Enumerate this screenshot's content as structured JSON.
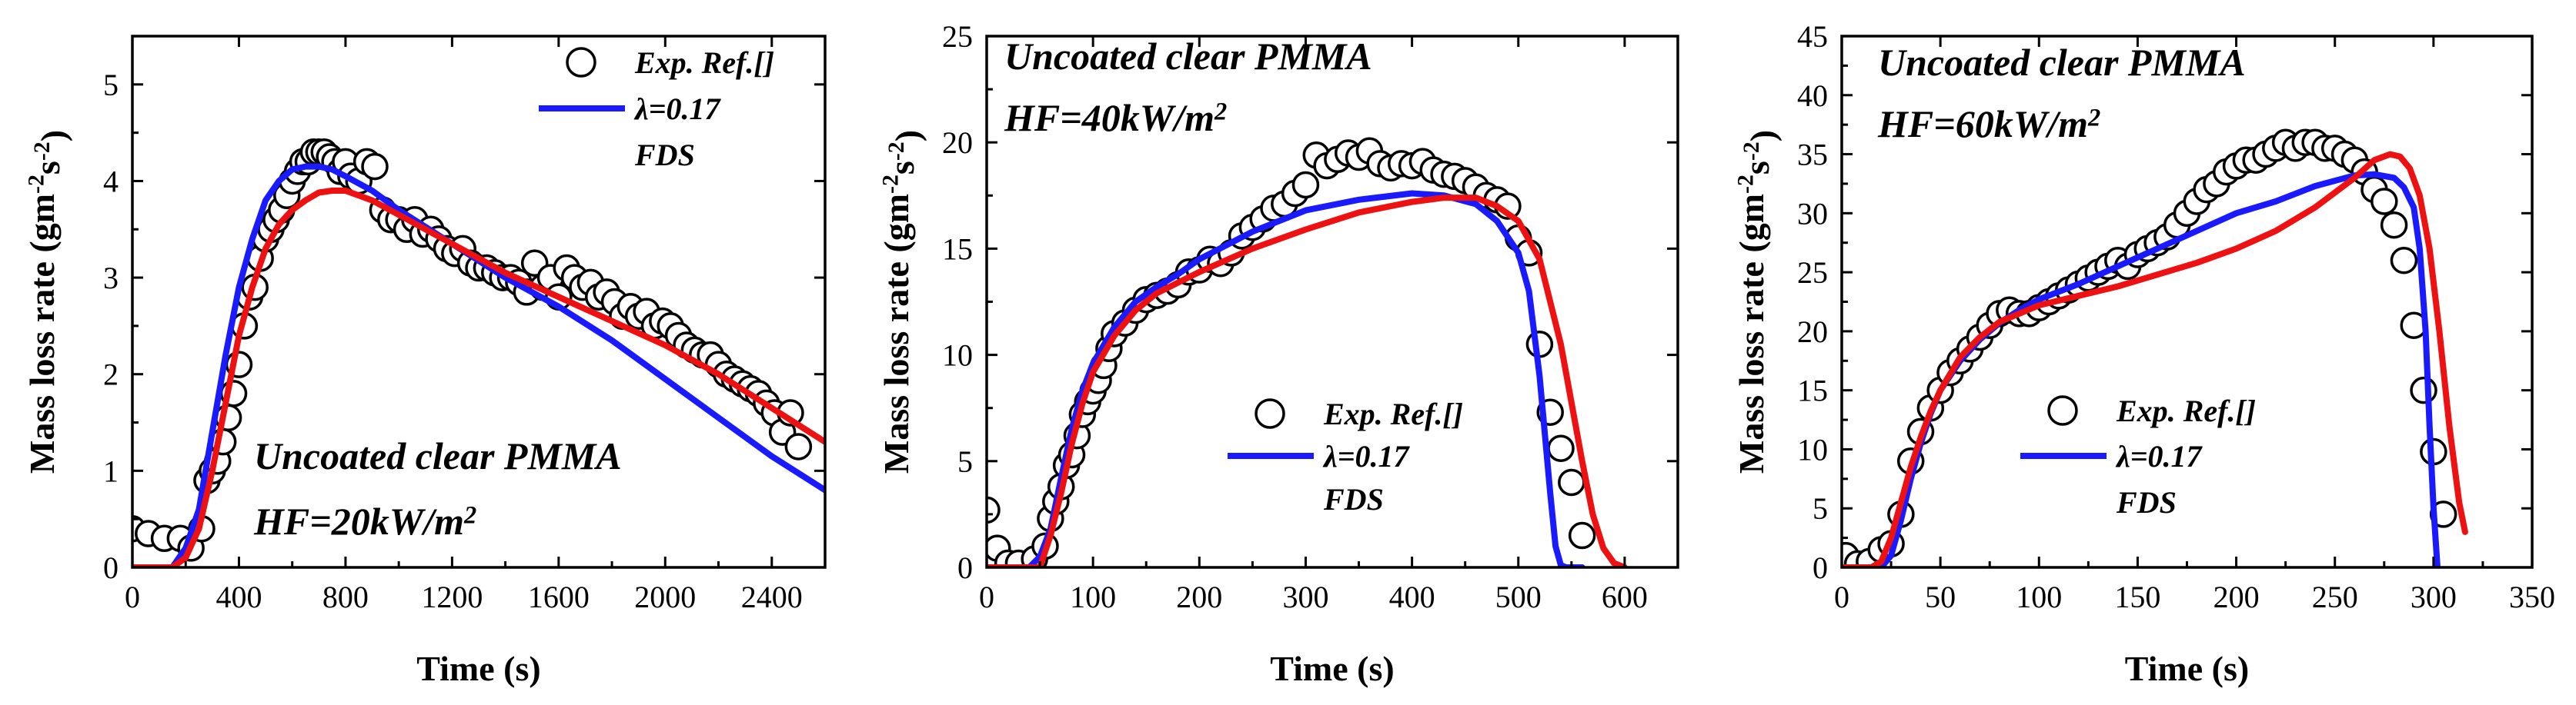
{
  "chart_data": [
    {
      "type": "line",
      "title": "",
      "annotation": [
        "Uncoated clear PMMA",
        "HF=20kW/m²"
      ],
      "xlabel": "Time (s)",
      "ylabel": "Mass loss rate (gm⁻²s⁻²)",
      "xlim": [
        0,
        2600
      ],
      "ylim": [
        0,
        5.5
      ],
      "xticks": [
        0,
        400,
        800,
        1200,
        1600,
        2000,
        2400
      ],
      "yticks": [
        0,
        1,
        2,
        3,
        4,
        5
      ],
      "legend": [
        "Exp. Ref.[]",
        "λ=0.17",
        "FDS"
      ],
      "colors": {
        "exp": "#000000",
        "lambda": "#1a1aff",
        "fds": "#ee1111"
      },
      "series": [
        {
          "name": "Exp. Ref.[]",
          "style": "markers",
          "x": [
            0,
            60,
            120,
            180,
            220,
            260,
            280,
            300,
            320,
            340,
            360,
            380,
            400,
            420,
            440,
            460,
            480,
            500,
            520,
            540,
            560,
            580,
            600,
            620,
            640,
            660,
            680,
            700,
            720,
            740,
            760,
            780,
            800,
            820,
            850,
            880,
            910,
            940,
            970,
            1000,
            1030,
            1060,
            1090,
            1120,
            1150,
            1180,
            1210,
            1240,
            1270,
            1300,
            1330,
            1360,
            1390,
            1420,
            1450,
            1480,
            1510,
            1540,
            1570,
            1600,
            1630,
            1660,
            1690,
            1720,
            1750,
            1780,
            1810,
            1840,
            1870,
            1900,
            1930,
            1960,
            1990,
            2020,
            2050,
            2080,
            2110,
            2140,
            2170,
            2200,
            2230,
            2260,
            2290,
            2320,
            2350,
            2380,
            2410,
            2440,
            2470,
            2500
          ],
          "y": [
            0.4,
            0.35,
            0.3,
            0.3,
            0.2,
            0.4,
            0.9,
            1.0,
            1.1,
            1.3,
            1.55,
            1.8,
            2.1,
            2.5,
            2.8,
            2.9,
            3.2,
            3.4,
            3.5,
            3.6,
            3.7,
            3.85,
            4.0,
            4.1,
            4.2,
            4.2,
            4.3,
            4.3,
            4.3,
            4.25,
            4.2,
            4.1,
            4.2,
            4.05,
            4.0,
            4.2,
            4.15,
            3.7,
            3.6,
            3.6,
            3.5,
            3.6,
            3.45,
            3.5,
            3.4,
            3.3,
            3.25,
            3.3,
            3.15,
            3.1,
            3.1,
            3.05,
            3.0,
            3.0,
            2.95,
            2.85,
            3.15,
            2.9,
            3.0,
            2.8,
            3.1,
            3.0,
            2.9,
            2.95,
            2.8,
            2.85,
            2.75,
            2.6,
            2.7,
            2.6,
            2.65,
            2.5,
            2.55,
            2.5,
            2.4,
            2.3,
            2.25,
            2.2,
            2.2,
            2.1,
            2.0,
            1.95,
            1.9,
            1.85,
            1.8,
            1.7,
            1.6,
            1.4,
            1.6,
            1.25
          ]
        },
        {
          "name": "λ=0.17",
          "style": "line",
          "x": [
            0,
            100,
            150,
            200,
            250,
            300,
            350,
            400,
            450,
            500,
            550,
            600,
            650,
            700,
            750,
            800,
            900,
            1000,
            1200,
            1400,
            1600,
            1800,
            2000,
            2200,
            2400,
            2600
          ],
          "y": [
            0,
            0,
            0.0,
            0.2,
            0.6,
            1.4,
            2.2,
            2.9,
            3.4,
            3.8,
            4.0,
            4.12,
            4.15,
            4.15,
            4.12,
            4.05,
            3.9,
            3.7,
            3.35,
            3.0,
            2.7,
            2.35,
            1.95,
            1.55,
            1.15,
            0.8
          ]
        },
        {
          "name": "FDS",
          "style": "line",
          "x": [
            0,
            150,
            200,
            250,
            300,
            350,
            400,
            450,
            500,
            550,
            600,
            650,
            700,
            750,
            800,
            900,
            1000,
            1200,
            1400,
            1600,
            1800,
            2000,
            2200,
            2400,
            2600
          ],
          "y": [
            0,
            0,
            0.1,
            0.4,
            1.0,
            1.7,
            2.4,
            2.9,
            3.3,
            3.55,
            3.7,
            3.8,
            3.88,
            3.9,
            3.9,
            3.8,
            3.65,
            3.35,
            3.05,
            2.8,
            2.55,
            2.3,
            2.0,
            1.65,
            1.3
          ]
        }
      ]
    },
    {
      "type": "line",
      "title": "",
      "annotation": [
        "Uncoated clear PMMA",
        "HF=40kW/m²"
      ],
      "xlabel": "Time (s)",
      "ylabel": "Mass loss rate (gm⁻²s⁻²)",
      "xlim": [
        0,
        650
      ],
      "ylim": [
        0,
        25
      ],
      "xticks": [
        0,
        100,
        200,
        300,
        400,
        500,
        600
      ],
      "yticks": [
        0,
        5,
        10,
        15,
        20,
        25
      ],
      "legend": [
        "Exp. Ref.[]",
        "λ=0.17",
        "FDS"
      ],
      "colors": {
        "exp": "#000000",
        "lambda": "#1a1aff",
        "fds": "#ee1111"
      },
      "series": [
        {
          "name": "Exp. Ref.[]",
          "style": "markers",
          "x": [
            0,
            10,
            20,
            30,
            45,
            55,
            60,
            65,
            70,
            75,
            80,
            85,
            90,
            95,
            100,
            105,
            110,
            115,
            120,
            130,
            140,
            150,
            160,
            170,
            180,
            190,
            200,
            210,
            220,
            230,
            240,
            250,
            260,
            270,
            280,
            290,
            300,
            310,
            320,
            330,
            340,
            350,
            360,
            370,
            380,
            390,
            400,
            410,
            420,
            430,
            440,
            450,
            460,
            470,
            480,
            490,
            500,
            510,
            520,
            530,
            540,
            550,
            560
          ],
          "y": [
            2.7,
            0.9,
            0.2,
            0.2,
            0.4,
            1.0,
            2.3,
            3.1,
            3.8,
            4.8,
            5.3,
            6.2,
            7.2,
            7.8,
            8.3,
            8.8,
            9.5,
            10.3,
            11.0,
            11.5,
            12.1,
            12.6,
            12.8,
            13.0,
            13.3,
            13.9,
            14.0,
            14.5,
            14.3,
            14.8,
            15.6,
            16.0,
            16.4,
            16.9,
            17.1,
            17.6,
            18.0,
            19.4,
            18.9,
            19.2,
            19.5,
            19.3,
            19.6,
            19.0,
            18.8,
            19.0,
            18.9,
            19.1,
            18.7,
            18.5,
            18.4,
            18.2,
            17.9,
            17.5,
            17.3,
            17.0,
            15.5,
            14.8,
            10.5,
            7.3,
            5.6,
            4.0,
            1.5
          ]
        },
        {
          "name": "λ=0.17",
          "style": "line",
          "x": [
            0,
            40,
            50,
            60,
            70,
            80,
            90,
            100,
            120,
            140,
            160,
            180,
            200,
            250,
            300,
            350,
            400,
            430,
            460,
            480,
            500,
            510,
            520,
            530,
            535,
            540,
            545,
            550,
            560
          ],
          "y": [
            0,
            0,
            0.5,
            1.8,
            4.2,
            6.5,
            8.3,
            9.6,
            11.3,
            12.5,
            13.2,
            13.8,
            14.5,
            15.8,
            16.8,
            17.3,
            17.6,
            17.5,
            17.1,
            16.3,
            14.8,
            13.0,
            9.0,
            3.5,
            1.0,
            0.1,
            0,
            0,
            0
          ]
        },
        {
          "name": "FDS",
          "style": "line",
          "x": [
            0,
            50,
            60,
            70,
            80,
            90,
            100,
            120,
            140,
            160,
            180,
            200,
            250,
            300,
            350,
            400,
            430,
            460,
            480,
            500,
            520,
            540,
            560,
            570,
            580,
            590,
            600
          ],
          "y": [
            0,
            0,
            1.5,
            3.5,
            5.8,
            7.7,
            9.2,
            10.9,
            12.1,
            12.9,
            13.4,
            13.9,
            15.0,
            15.9,
            16.7,
            17.2,
            17.4,
            17.4,
            17.0,
            16.3,
            14.5,
            10.5,
            5.0,
            2.5,
            0.9,
            0.2,
            0
          ]
        }
      ]
    },
    {
      "type": "line",
      "title": "",
      "annotation": [
        "Uncoated clear PMMA",
        "HF=60kW/m²"
      ],
      "xlabel": "Time (s)",
      "ylabel": "Mass loss rate (gm⁻²s⁻²)",
      "xlim": [
        0,
        350
      ],
      "ylim": [
        0,
        45
      ],
      "xticks": [
        0,
        50,
        100,
        150,
        200,
        250,
        300,
        350
      ],
      "yticks": [
        0,
        5,
        10,
        15,
        20,
        25,
        30,
        35,
        40,
        45
      ],
      "legend": [
        "Exp. Ref.[]",
        "λ=0.17",
        "FDS"
      ],
      "colors": {
        "exp": "#000000",
        "lambda": "#1a1aff",
        "fds": "#ee1111"
      },
      "series": [
        {
          "name": "Exp. Ref.[]",
          "style": "markers",
          "x": [
            2,
            8,
            14,
            20,
            25,
            30,
            35,
            40,
            45,
            50,
            55,
            60,
            65,
            70,
            75,
            80,
            85,
            90,
            95,
            100,
            105,
            110,
            115,
            120,
            125,
            130,
            135,
            140,
            145,
            150,
            155,
            160,
            165,
            170,
            175,
            180,
            185,
            190,
            195,
            200,
            205,
            210,
            215,
            220,
            225,
            230,
            235,
            240,
            245,
            250,
            255,
            260,
            265,
            270,
            275,
            280,
            285,
            290,
            295,
            300,
            305
          ],
          "y": [
            1.0,
            0.3,
            0.5,
            1.5,
            2.0,
            4.5,
            9.0,
            11.5,
            13.5,
            15.0,
            16.5,
            17.5,
            18.5,
            19.5,
            20.5,
            21.5,
            21.8,
            21.5,
            21.5,
            22.0,
            22.5,
            23.0,
            23.5,
            24.0,
            24.5,
            25.0,
            25.5,
            26.0,
            25.5,
            26.5,
            27.0,
            27.5,
            28.0,
            29.0,
            30.0,
            31.0,
            32.0,
            32.5,
            33.5,
            34.0,
            34.5,
            34.5,
            35.0,
            35.5,
            36.0,
            35.5,
            36.0,
            36.0,
            35.5,
            35.5,
            35.0,
            34.5,
            33.5,
            32.0,
            31.0,
            29.0,
            26.0,
            20.5,
            15.0,
            9.8,
            4.5
          ]
        },
        {
          "name": "λ=0.17",
          "style": "line",
          "x": [
            0,
            20,
            25,
            30,
            35,
            40,
            45,
            50,
            60,
            70,
            80,
            90,
            100,
            120,
            140,
            160,
            180,
            200,
            220,
            240,
            260,
            270,
            280,
            285,
            290,
            293,
            296,
            298,
            300,
            302
          ],
          "y": [
            0,
            0,
            1.0,
            4.0,
            7.5,
            10.5,
            13.0,
            15.0,
            17.5,
            19.3,
            20.7,
            21.8,
            22.7,
            24.0,
            25.5,
            27.0,
            28.5,
            30.0,
            31.0,
            32.3,
            33.2,
            33.3,
            33.0,
            32.2,
            30.5,
            27.0,
            20.0,
            12.0,
            5.0,
            0
          ]
        },
        {
          "name": "FDS",
          "style": "line",
          "x": [
            0,
            15,
            20,
            25,
            30,
            35,
            40,
            45,
            50,
            60,
            70,
            80,
            90,
            100,
            120,
            140,
            160,
            180,
            200,
            220,
            240,
            260,
            270,
            278,
            283,
            288,
            293,
            298,
            303,
            308,
            313,
            316
          ],
          "y": [
            0,
            0,
            0.5,
            2.5,
            5.5,
            8.5,
            11.0,
            13.2,
            15.0,
            17.8,
            19.5,
            20.8,
            21.5,
            22.2,
            23.0,
            23.8,
            24.8,
            25.8,
            27.0,
            28.5,
            30.5,
            33.0,
            34.5,
            35.0,
            34.8,
            33.8,
            31.5,
            27.0,
            20.0,
            12.0,
            5.5,
            3.0
          ]
        }
      ]
    }
  ]
}
